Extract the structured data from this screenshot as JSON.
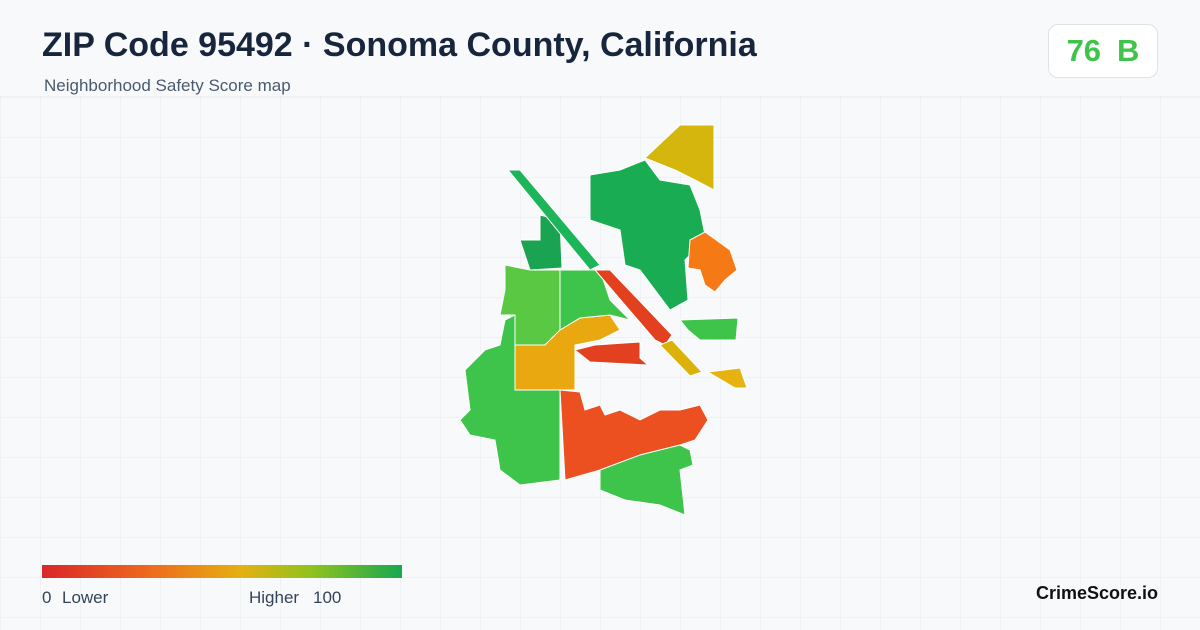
{
  "header": {
    "title": "ZIP Code 95492 · Sonoma County, California",
    "subtitle": "Neighborhood Safety Score map"
  },
  "score": {
    "value": 76,
    "grade": "B"
  },
  "legend": {
    "min": 0,
    "min_label": "Lower",
    "max_label": "Higher",
    "max": 100
  },
  "brand": "CrimeScore.io"
}
